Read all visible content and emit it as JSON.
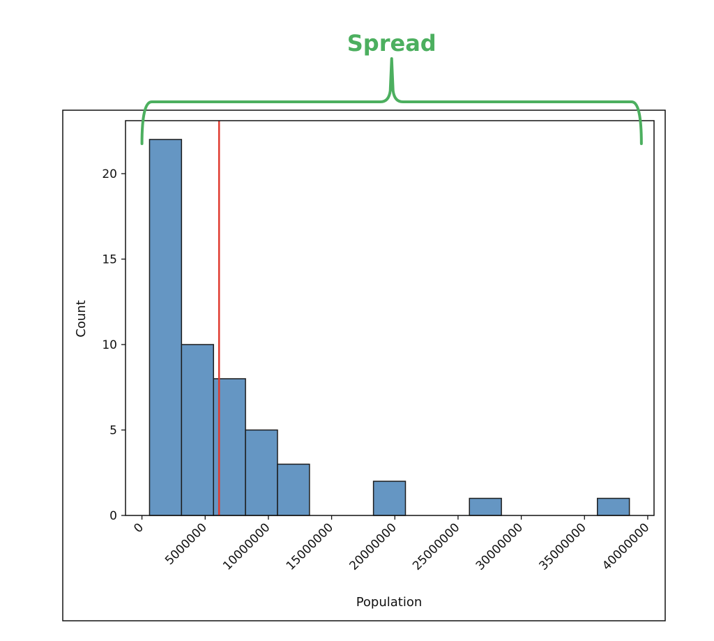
{
  "chart_data": {
    "type": "bar",
    "title": "",
    "xlabel": "Population",
    "ylabel": "Count",
    "xlim": [
      -1300000,
      40500000
    ],
    "ylim": [
      0,
      23.1
    ],
    "x_ticks": [
      0,
      5000000,
      10000000,
      15000000,
      20000000,
      25000000,
      30000000,
      35000000,
      40000000
    ],
    "x_tick_labels": [
      "0",
      "5000000",
      "10000000",
      "15000000",
      "20000000",
      "25000000",
      "30000000",
      "35000000",
      "40000000"
    ],
    "y_ticks": [
      0,
      5,
      10,
      15,
      20
    ],
    "y_tick_labels": [
      "0",
      "5",
      "10",
      "15",
      "20"
    ],
    "bins": [
      {
        "start": 600000,
        "end": 3130000,
        "count": 22
      },
      {
        "start": 3130000,
        "end": 5660000,
        "count": 10
      },
      {
        "start": 5660000,
        "end": 8190000,
        "count": 8
      },
      {
        "start": 8190000,
        "end": 10720000,
        "count": 5
      },
      {
        "start": 10720000,
        "end": 13250000,
        "count": 3
      },
      {
        "start": 13250000,
        "end": 15780000,
        "count": 0
      },
      {
        "start": 15780000,
        "end": 18310000,
        "count": 0
      },
      {
        "start": 18310000,
        "end": 20840000,
        "count": 2
      },
      {
        "start": 20840000,
        "end": 23370000,
        "count": 0
      },
      {
        "start": 23370000,
        "end": 25900000,
        "count": 0
      },
      {
        "start": 25900000,
        "end": 28430000,
        "count": 1
      },
      {
        "start": 28430000,
        "end": 30960000,
        "count": 0
      },
      {
        "start": 30960000,
        "end": 33490000,
        "count": 0
      },
      {
        "start": 33490000,
        "end": 36020000,
        "count": 0
      },
      {
        "start": 36020000,
        "end": 38550000,
        "count": 1
      }
    ],
    "mean_line": {
      "value": 6100000,
      "color": "#e03a2f"
    },
    "annotation": {
      "label": "Spread",
      "color": "#4caf5f",
      "range": [
        0,
        39500000
      ]
    },
    "colors": {
      "bar_fill": "#6596c3",
      "bar_edge": "#1c1c1c",
      "axes": "#111111",
      "figure_border": "#111111"
    }
  }
}
